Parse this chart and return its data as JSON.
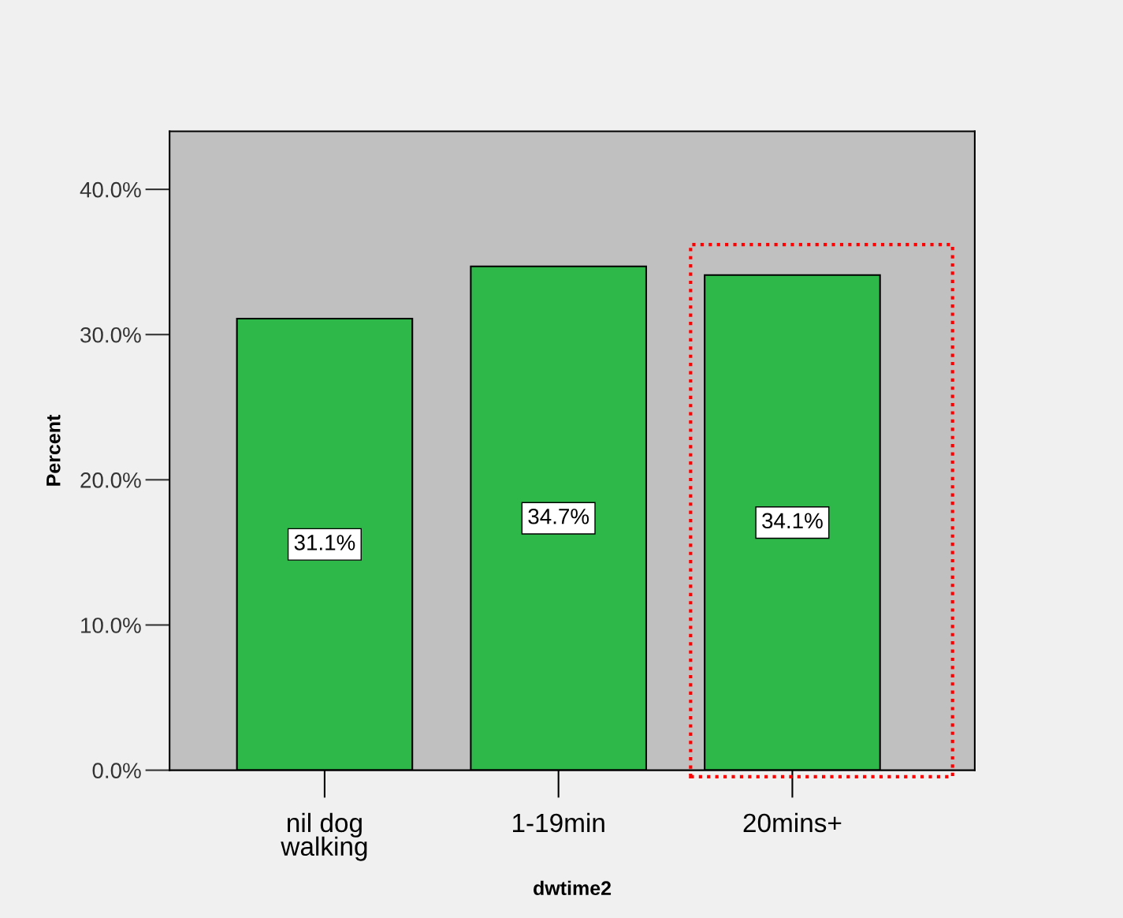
{
  "chart_data": {
    "type": "bar",
    "xlabel": "dwtime2",
    "ylabel": "Percent",
    "categories": [
      "nil dog\nwalking",
      "1-19min",
      "20mins+"
    ],
    "values": [
      31.1,
      34.7,
      34.1
    ],
    "value_labels": [
      "31.1%",
      "34.7%",
      "34.1%"
    ],
    "color": "#2fb84a",
    "ylim": [
      0,
      44
    ],
    "yticks": [
      {
        "value": 0,
        "label": "0.0%"
      },
      {
        "value": 10,
        "label": "10.0%"
      },
      {
        "value": 20,
        "label": "20.0%"
      },
      {
        "value": 30,
        "label": "30.0%"
      },
      {
        "value": 40,
        "label": "40.0%"
      }
    ],
    "grid": false,
    "legend": false
  }
}
